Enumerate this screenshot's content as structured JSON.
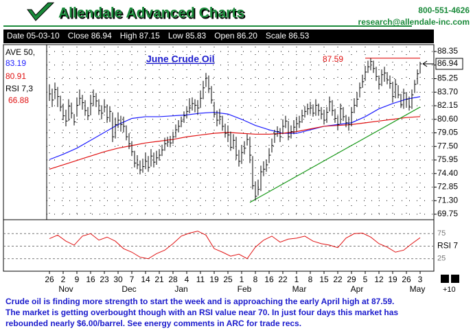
{
  "header": {
    "brand": "Allendale Advanced Charts",
    "phone": "800-551-4626",
    "email": "research@allendale-inc.com"
  },
  "info": [
    "Date 05-03-10",
    "Close 86.94",
    "High 87.15",
    "Low 85.83",
    "Open 86.20",
    "Scale 86.53"
  ],
  "chart_data": {
    "type": "ohlc",
    "title": "June Crude Oil",
    "xlim": [
      -1,
      140
    ],
    "xticks": [
      {
        "value": 0,
        "label": "26"
      },
      {
        "value": 5,
        "label": "2"
      },
      {
        "value": 10,
        "label": "9"
      },
      {
        "value": 15,
        "label": "16"
      },
      {
        "value": 20,
        "label": "23"
      },
      {
        "value": 25,
        "label": "30"
      },
      {
        "value": 30,
        "label": "7"
      },
      {
        "value": 35,
        "label": "14"
      },
      {
        "value": 40,
        "label": "21"
      },
      {
        "value": 45,
        "label": "28"
      },
      {
        "value": 50,
        "label": "4"
      },
      {
        "value": 55,
        "label": "11"
      },
      {
        "value": 60,
        "label": "19"
      },
      {
        "value": 65,
        "label": "25"
      },
      {
        "value": 70,
        "label": "1"
      },
      {
        "value": 75,
        "label": "8"
      },
      {
        "value": 80,
        "label": "16"
      },
      {
        "value": 85,
        "label": "22"
      },
      {
        "value": 90,
        "label": "1"
      },
      {
        "value": 95,
        "label": "8"
      },
      {
        "value": 100,
        "label": "15"
      },
      {
        "value": 105,
        "label": "22"
      },
      {
        "value": 110,
        "label": "29"
      },
      {
        "value": 115,
        "label": "5"
      },
      {
        "value": 120,
        "label": "12"
      },
      {
        "value": 125,
        "label": "19"
      },
      {
        "value": 130,
        "label": "26"
      },
      {
        "value": 135,
        "label": "3"
      }
    ],
    "months": [
      {
        "value": 6,
        "label": "Nov"
      },
      {
        "value": 29,
        "label": "Dec"
      },
      {
        "value": 48,
        "label": "Jan"
      },
      {
        "value": 71,
        "label": "Feb"
      },
      {
        "value": 91,
        "label": "Mar"
      },
      {
        "value": 112,
        "label": "Apr"
      },
      {
        "value": 134,
        "label": "May"
      }
    ],
    "ylim": [
      69.28,
      88.9
    ],
    "yticks": [
      88.35,
      {
        "value": 86.8,
        "label": "86.80"
      },
      85.25,
      {
        "value": 83.7,
        "label": "83.70"
      },
      82.15,
      {
        "value": 80.6,
        "label": "80.60"
      },
      79.05,
      {
        "value": 77.5,
        "label": "77.50"
      },
      75.95,
      {
        "value": 74.4,
        "label": "74.40"
      },
      72.85,
      {
        "value": 71.3,
        "label": "71.30"
      },
      69.75
    ],
    "grid": true,
    "bar_color": "#000000",
    "high": [
      84.6,
      84.1,
      84.8,
      84.3,
      83.3,
      82.4,
      81.7,
      82.9,
      82.5,
      81.2,
      83.1,
      84.0,
      83.4,
      82.8,
      82.0,
      83.4,
      84.0,
      83.6,
      82.9,
      82.2,
      82.9,
      82.3,
      82.1,
      81.4,
      80.8,
      81.4,
      81.0,
      80.9,
      79.9,
      79.0,
      78.1,
      77.0,
      76.5,
      75.9,
      76.1,
      76.8,
      76.4,
      77.2,
      76.8,
      77.0,
      77.2,
      77.7,
      78.5,
      78.6,
      78.7,
      79.2,
      80.0,
      80.5,
      80.9,
      81.5,
      82.1,
      83.0,
      83.1,
      82.9,
      82.8,
      83.9,
      85.0,
      85.9,
      85.6,
      84.4,
      82.6,
      81.6,
      81.8,
      81.0,
      80.1,
      79.9,
      79.2,
      78.9,
      78.6,
      77.1,
      77.6,
      78.1,
      78.9,
      78.6,
      76.4,
      73.5,
      73.7,
      75.3,
      75.8,
      76.0,
      77.3,
      78.4,
      79.4,
      79.8,
      79.6,
      80.6,
      81.0,
      80.4,
      79.9,
      80.5,
      80.9,
      81.0,
      81.7,
      82.1,
      82.4,
      82.6,
      82.3,
      82.9,
      82.4,
      82.0,
      81.7,
      82.0,
      83.2,
      82.8,
      81.8,
      81.0,
      82.4,
      82.0,
      81.1,
      80.9,
      82.0,
      83.0,
      83.7,
      84.8,
      85.7,
      86.7,
      87.3,
      87.59,
      87.3,
      86.6,
      85.6,
      86.3,
      86.6,
      86.0,
      85.6,
      84.9,
      85.2,
      84.5,
      83.5,
      84.1,
      83.7,
      83.2,
      84.0,
      85.1,
      86.3,
      87.15
    ],
    "low": [
      82.7,
      82.0,
      82.9,
      82.0,
      81.5,
      80.5,
      79.8,
      80.4,
      80.7,
      79.9,
      80.9,
      82.2,
      81.7,
      81.0,
      80.5,
      81.1,
      82.1,
      82.0,
      81.1,
      80.6,
      81.4,
      80.2,
      80.3,
      78.0,
      78.4,
      79.6,
      79.2,
      79.1,
      78.2,
      77.2,
      76.4,
      75.1,
      74.9,
      74.3,
      74.5,
      74.9,
      74.6,
      75.2,
      75.1,
      75.4,
      75.9,
      76.4,
      77.0,
      77.5,
      77.4,
      77.8,
      78.5,
      79.1,
      79.7,
      80.2,
      80.7,
      81.3,
      81.6,
      81.4,
      81.1,
      81.9,
      82.9,
      84.3,
      83.6,
      82.4,
      80.8,
      79.8,
      80.0,
      79.3,
      78.5,
      78.0,
      77.0,
      77.2,
      76.0,
      75.2,
      75.5,
      76.6,
      77.6,
      75.6,
      72.6,
      71.3,
      71.9,
      72.4,
      74.1,
      74.6,
      75.6,
      76.8,
      77.9,
      78.6,
      78.0,
      78.9,
      79.6,
      78.2,
      78.4,
      78.9,
      79.2,
      79.6,
      80.2,
      80.8,
      81.1,
      81.2,
      80.9,
      81.0,
      81.0,
      80.6,
      80.0,
      80.2,
      81.5,
      81.0,
      80.2,
      79.4,
      80.1,
      80.4,
      79.7,
      79.3,
      79.8,
      81.3,
      82.0,
      83.1,
      84.2,
      85.0,
      85.9,
      86.2,
      85.9,
      85.0,
      84.0,
      84.4,
      84.9,
      84.6,
      84.1,
      82.5,
      83.0,
      83.0,
      81.9,
      81.8,
      82.0,
      81.6,
      81.8,
      83.6,
      84.6,
      85.83
    ],
    "close": [
      83.5,
      82.8,
      84.0,
      83.2,
      82.0,
      81.0,
      80.4,
      82.1,
      81.3,
      80.3,
      82.2,
      83.0,
      82.5,
      81.6,
      81.0,
      82.4,
      83.2,
      82.7,
      81.6,
      81.3,
      82.0,
      80.8,
      81.5,
      78.6,
      80.0,
      80.5,
      80.0,
      79.8,
      78.6,
      77.8,
      76.9,
      75.6,
      75.4,
      74.8,
      75.2,
      75.8,
      75.1,
      76.4,
      75.7,
      76.2,
      76.5,
      77.1,
      77.8,
      78.0,
      77.9,
      78.6,
      79.4,
      79.8,
      80.4,
      81.0,
      81.5,
      81.9,
      82.4,
      82.2,
      81.9,
      83.0,
      84.2,
      85.3,
      84.1,
      82.8,
      81.2,
      80.5,
      80.9,
      79.8,
      79.0,
      78.8,
      77.4,
      78.2,
      76.5,
      75.8,
      76.8,
      77.3,
      78.3,
      76.5,
      73.0,
      71.8,
      72.6,
      74.6,
      74.9,
      75.4,
      76.5,
      77.6,
      78.9,
      79.2,
      78.6,
      79.8,
      80.4,
      78.6,
      79.2,
      79.7,
      80.1,
      80.3,
      81.0,
      81.5,
      81.8,
      81.9,
      81.3,
      82.2,
      81.6,
      81.2,
      80.5,
      81.4,
      82.6,
      81.6,
      80.7,
      80.0,
      81.8,
      80.9,
      80.2,
      80.0,
      81.4,
      82.2,
      82.9,
      84.2,
      84.9,
      86.0,
      86.6,
      87.2,
      86.4,
      85.5,
      84.6,
      85.7,
      85.9,
      85.1,
      84.7,
      83.2,
      84.6,
      83.4,
      82.3,
      83.6,
      82.9,
      82.0,
      83.4,
      84.6,
      85.8,
      86.94
    ],
    "ma_label": "AVE 50,",
    "ma_x": [
      0,
      5,
      10,
      15,
      20,
      25,
      30,
      35,
      40,
      45,
      50,
      55,
      60,
      65,
      70,
      75,
      80,
      85,
      90,
      95,
      100,
      105,
      110,
      115,
      120,
      125,
      130,
      135
    ],
    "series": [
      {
        "name": "AVE 50",
        "color": "#1a1aff",
        "values": [
          76.0,
          76.6,
          77.3,
          78.2,
          79.1,
          80.0,
          80.7,
          80.9,
          80.9,
          81.0,
          81.1,
          81.3,
          81.4,
          81.2,
          80.6,
          79.9,
          79.4,
          79.0,
          79.0,
          79.4,
          79.8,
          80.0,
          80.2,
          80.9,
          81.8,
          82.4,
          82.9,
          83.19
        ]
      },
      {
        "name": "AVE",
        "color": "#e01010",
        "values": [
          74.9,
          75.4,
          75.9,
          76.4,
          76.9,
          77.3,
          77.6,
          77.9,
          78.1,
          78.3,
          78.6,
          78.8,
          79.0,
          79.1,
          79.0,
          78.9,
          78.9,
          79.0,
          79.2,
          79.5,
          79.8,
          79.9,
          80.0,
          80.2,
          80.4,
          80.6,
          80.8,
          80.91
        ]
      }
    ],
    "trendline": {
      "color": "#1a9a1a",
      "x": [
        73,
        135
      ],
      "values": [
        71.1,
        82.0
      ]
    },
    "resistance": {
      "color": "#e01010",
      "x": [
        115,
        135
      ],
      "values": [
        87.59,
        87.59
      ]
    },
    "rsi": {
      "label": "RSI 7,3",
      "axis_label": "RSI 7",
      "color": "#e01010",
      "ylim": [
        0,
        100
      ],
      "yticks": [
        75,
        25
      ],
      "x": [
        0,
        3,
        6,
        9,
        12,
        15,
        18,
        21,
        24,
        27,
        30,
        33,
        36,
        39,
        42,
        45,
        48,
        51,
        54,
        57,
        60,
        63,
        66,
        69,
        72,
        75,
        78,
        81,
        84,
        87,
        90,
        93,
        96,
        99,
        102,
        105,
        108,
        111,
        114,
        117,
        120,
        123,
        126,
        129,
        132,
        135
      ],
      "values": [
        65,
        72,
        60,
        52,
        70,
        75,
        62,
        68,
        60,
        45,
        38,
        28,
        25,
        35,
        42,
        55,
        70,
        76,
        80,
        72,
        45,
        38,
        30,
        34,
        25,
        48,
        62,
        70,
        58,
        64,
        66,
        70,
        60,
        55,
        52,
        47,
        66,
        75,
        76,
        68,
        55,
        48,
        38,
        42,
        55,
        66.88
      ]
    }
  },
  "zoom_label": "+10",
  "commentary": [
    "Crude oil is finding more strength to start the week and is approaching the early April high at 87.59.",
    "The market is getting overbought though with an RSI value near 70. In just four days this market has",
    "rebounded nearly $6.00/barrel. See energy comments in ARC for trade recs."
  ]
}
